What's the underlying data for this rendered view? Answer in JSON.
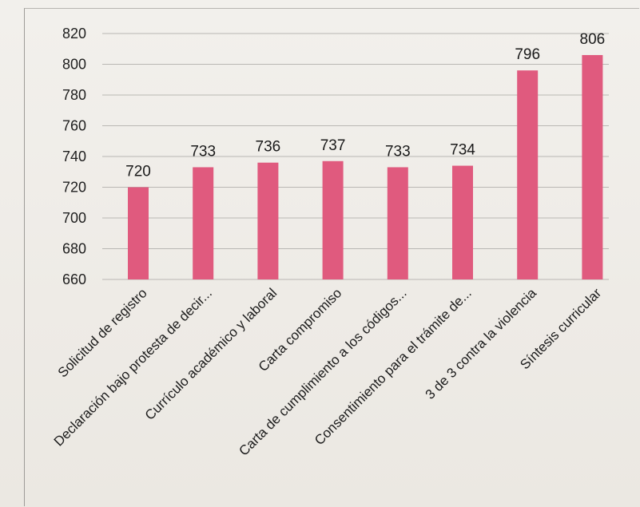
{
  "chart_data": {
    "type": "bar",
    "title": "",
    "xlabel": "",
    "ylabel": "",
    "ylim": [
      660,
      820
    ],
    "yticks": [
      660,
      680,
      700,
      720,
      740,
      760,
      780,
      800,
      820
    ],
    "grid": true,
    "legend": "none",
    "bar_color": "#e05a7e",
    "categories": [
      "Solicitud de registro",
      "Declaración bajo protesta de decir...",
      "Currículo académico y laboral",
      "Carta compromiso",
      "Carta de cumplimiento a los códigos...",
      "Consentimiento para el trámite de...",
      "3 de 3 contra la violencia",
      "Síntesis curricular"
    ],
    "values": [
      720,
      733,
      736,
      737,
      733,
      734,
      796,
      806
    ]
  }
}
